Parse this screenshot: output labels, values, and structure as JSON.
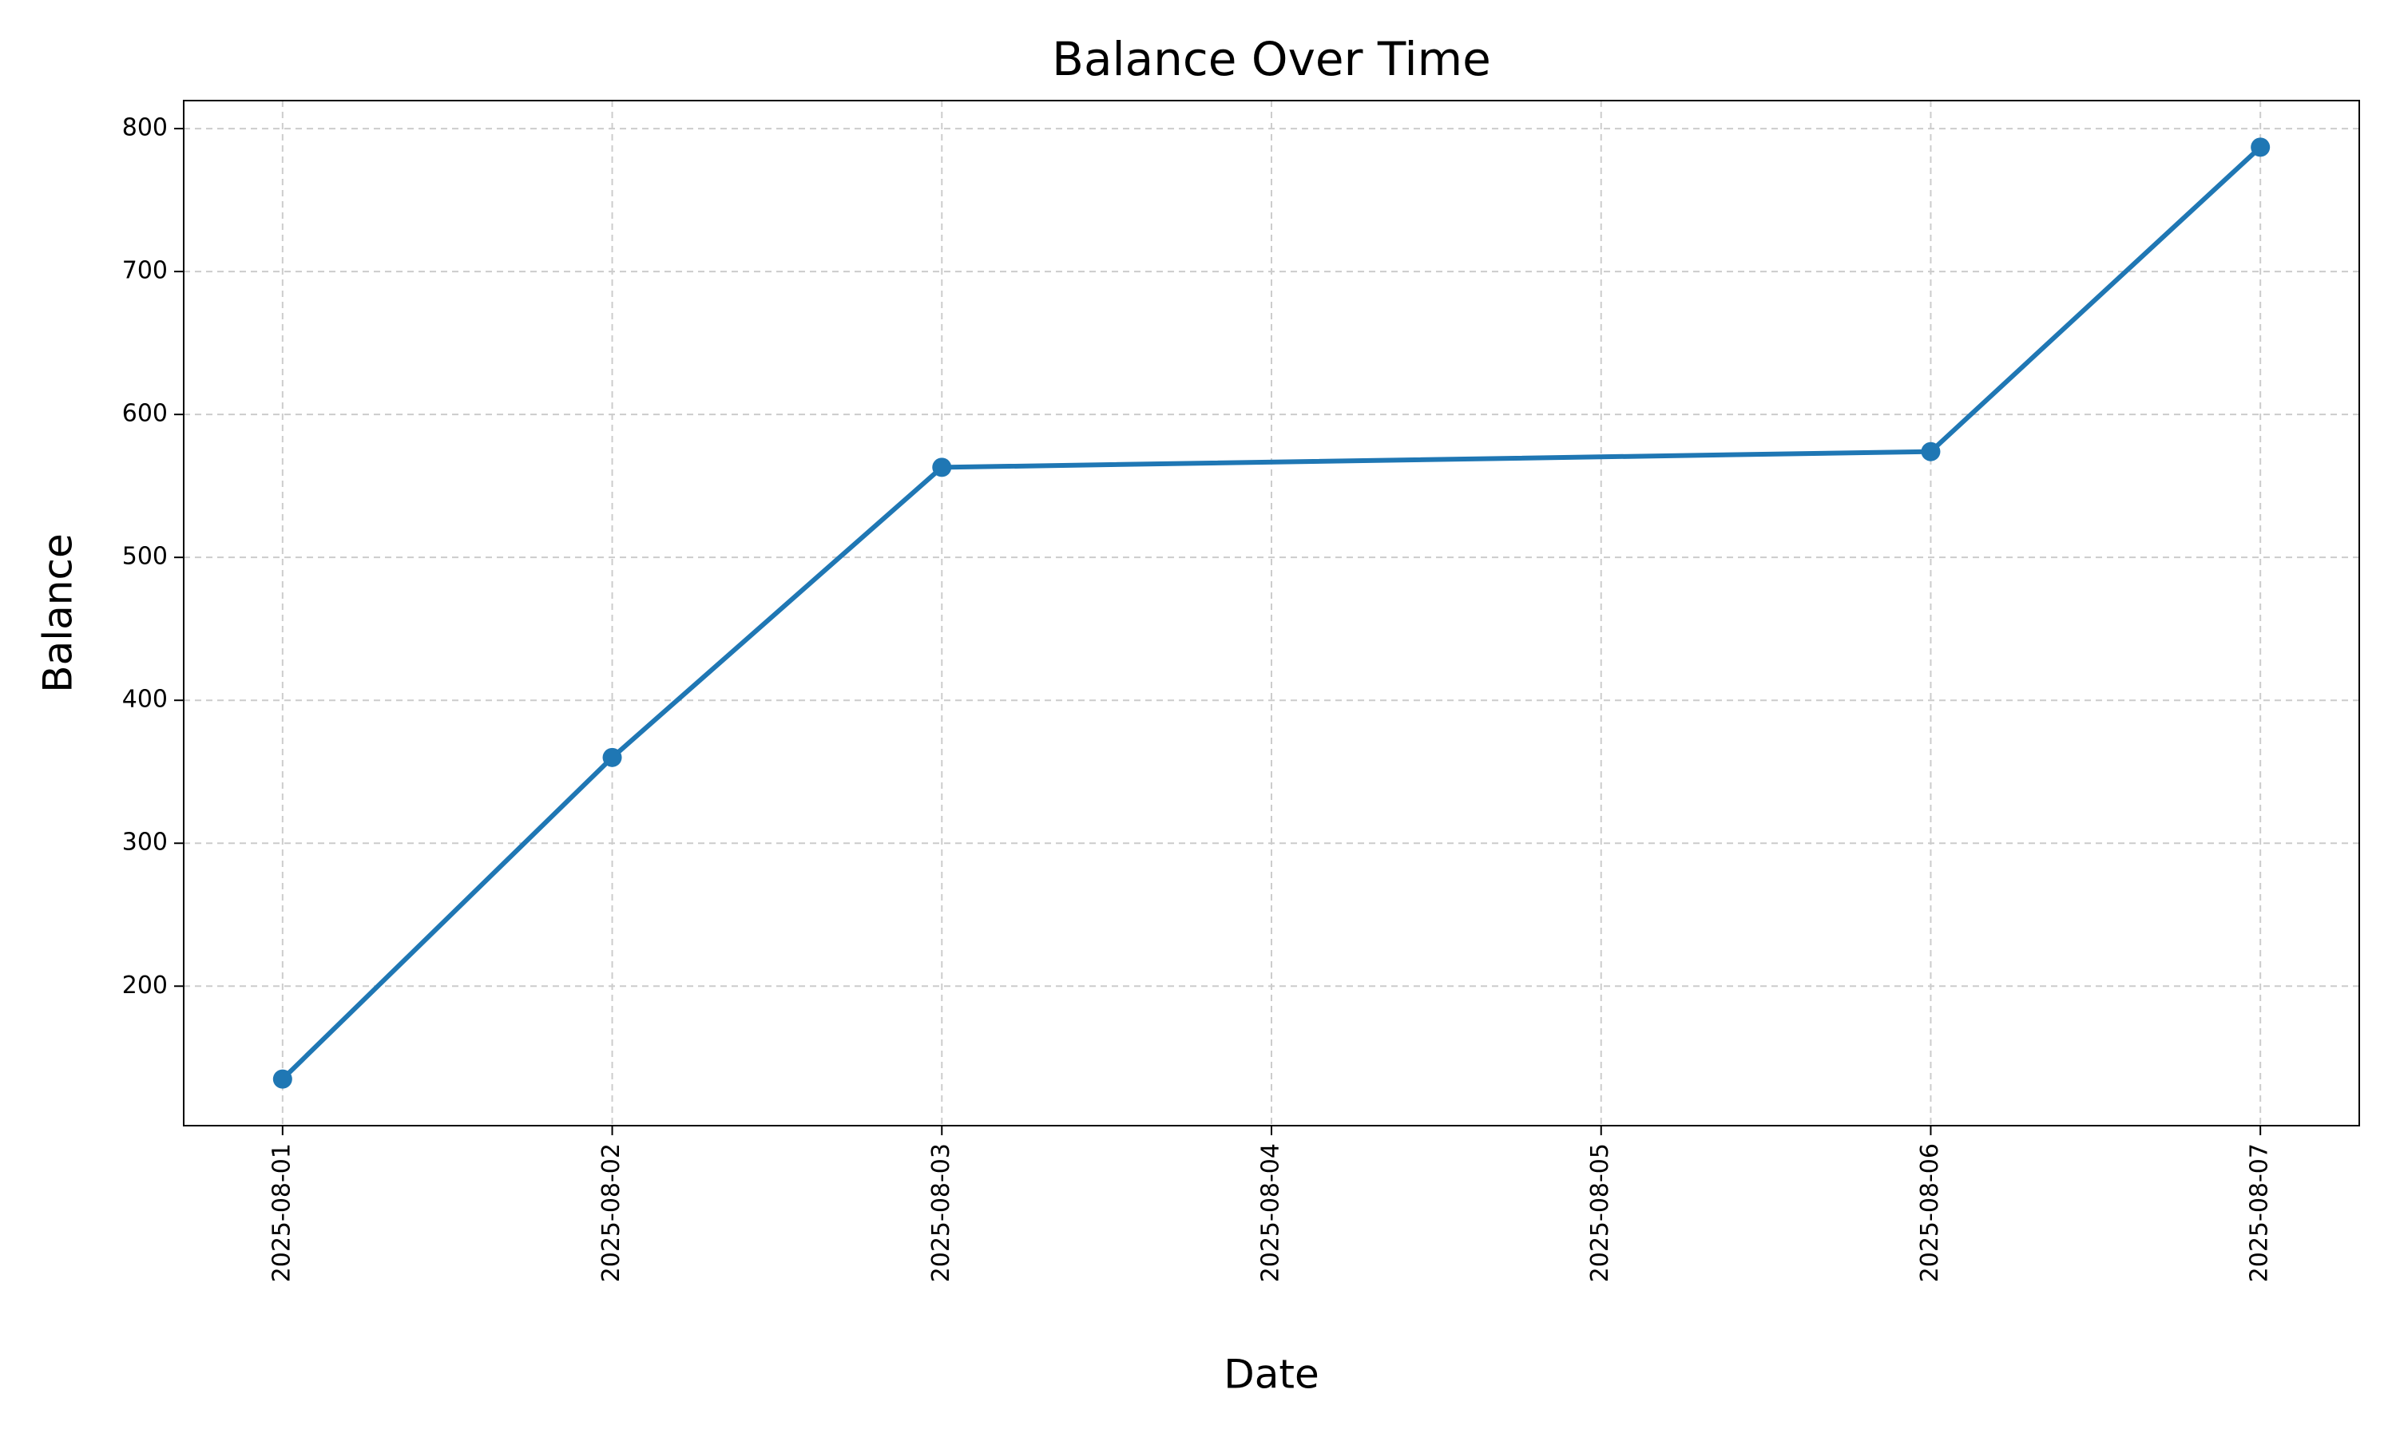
{
  "chart_data": {
    "type": "line",
    "title": "Balance Over Time",
    "x_label": "Date",
    "y_label": "Balance",
    "x": [
      "2025-08-01",
      "2025-08-02",
      "2025-08-03",
      "2025-08-06",
      "2025-08-07"
    ],
    "series": [
      {
        "name": "Balance",
        "color": "#1f77b4",
        "values": [
          135,
          360,
          563,
          574,
          787
        ]
      }
    ],
    "xticks": [
      "2025-08-01",
      "2025-08-02",
      "2025-08-03",
      "2025-08-04",
      "2025-08-05",
      "2025-08-06",
      "2025-08-07"
    ],
    "ylim": [
      102.4,
      819.6
    ],
    "yticks": [
      200,
      300,
      400,
      500,
      600,
      700,
      800
    ],
    "grid": true
  }
}
